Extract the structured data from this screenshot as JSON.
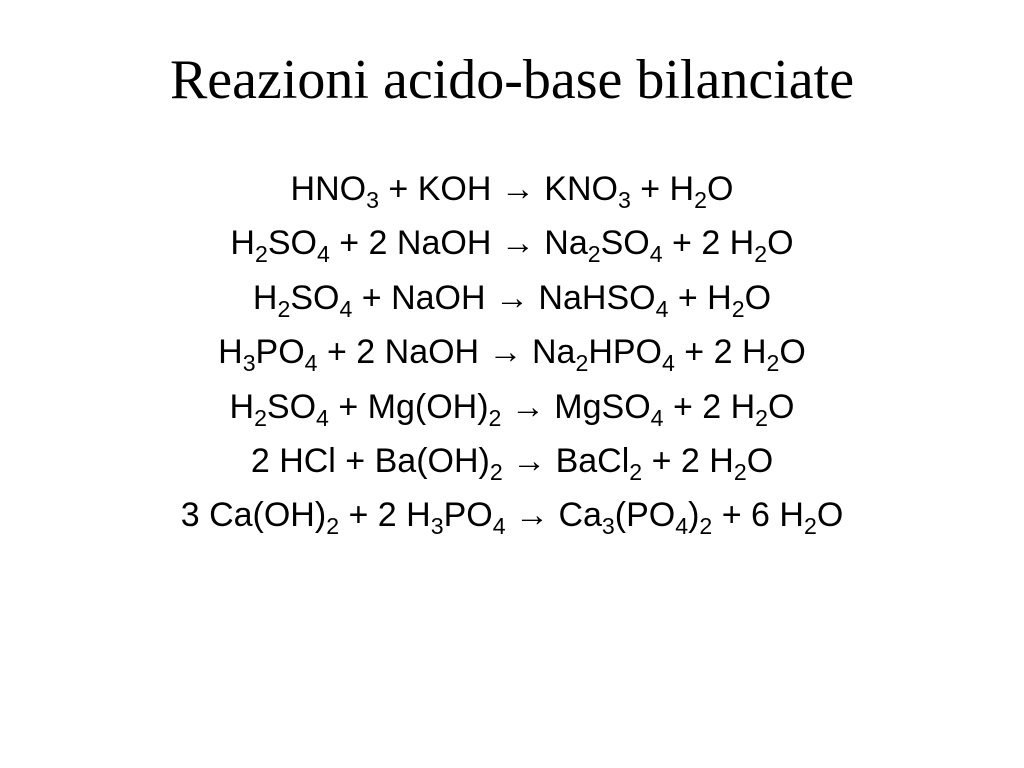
{
  "slide": {
    "title": "Reazioni acido-base bilanciate",
    "title_font": "Times New Roman",
    "title_fontsize": 56,
    "body_font": "Arial",
    "body_fontsize": 34,
    "text_color": "#000000",
    "background_color": "#ffffff",
    "equations": [
      {
        "tokens": [
          "HNO",
          "_3",
          " + KOH → KNO",
          "_3",
          " + H",
          "_2",
          "O"
        ]
      },
      {
        "tokens": [
          "H",
          "_2",
          "SO",
          "_4",
          " + 2 NaOH → Na",
          "_2",
          "SO",
          "_4",
          " + 2 H",
          "_2",
          "O"
        ]
      },
      {
        "tokens": [
          "H",
          "_2",
          "SO",
          "_4",
          " + NaOH → NaHSO",
          "_4",
          " + H",
          "_2",
          "O"
        ]
      },
      {
        "tokens": [
          "H",
          "_3",
          "PO",
          "_4",
          " + 2 NaOH → Na",
          "_2",
          "HPO",
          "_4",
          " + 2 H",
          "_2",
          "O"
        ]
      },
      {
        "tokens": [
          "H",
          "_2",
          "SO",
          "_4",
          " + Mg(OH)",
          "_2",
          " → MgSO",
          "_4",
          " + 2 H",
          "_2",
          "O"
        ]
      },
      {
        "tokens": [
          "2 HCl + Ba(OH)",
          "_2",
          " → BaCl",
          "_2",
          " + 2 H",
          "_2",
          "O"
        ]
      },
      {
        "tokens": [
          "3 Ca(OH)",
          "_2",
          " + 2 H",
          "_3",
          "PO",
          "_4",
          " → Ca",
          "_3",
          "(PO",
          "_4",
          ")",
          "_2",
          " + 6 H",
          "_2",
          "O"
        ]
      }
    ]
  }
}
